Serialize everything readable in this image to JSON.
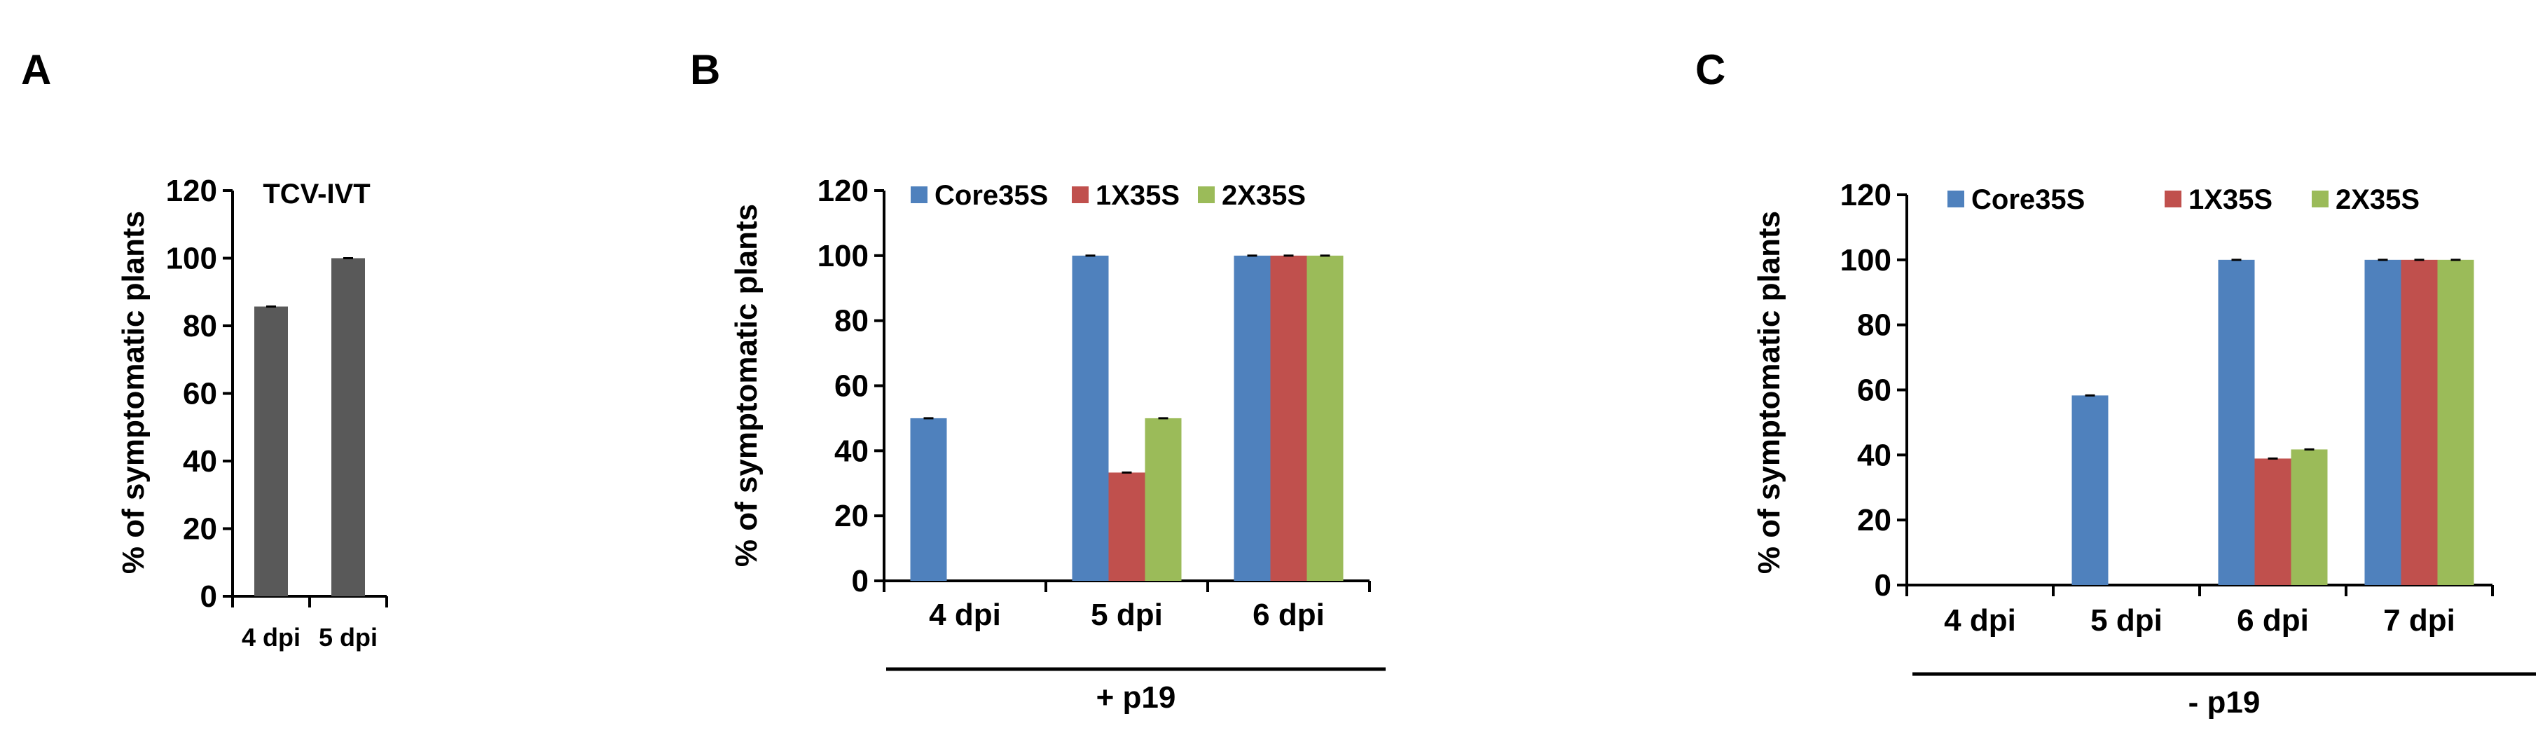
{
  "chart_data": [
    {
      "panel": "A",
      "type": "bar",
      "ylabel": "% of symptomatic plants",
      "ylim": [
        0,
        120
      ],
      "yticks": [
        0,
        20,
        40,
        60,
        80,
        100,
        120
      ],
      "categories": [
        "4 dpi",
        "5 dpi"
      ],
      "annotation": "TCV-IVT",
      "series": [
        {
          "values": [
            85.7,
            100
          ],
          "color": "#595959"
        }
      ]
    },
    {
      "panel": "B",
      "type": "bar",
      "ylabel": "% of symptomatic plants",
      "ylim": [
        0,
        120
      ],
      "yticks": [
        0,
        20,
        40,
        60,
        80,
        100,
        120
      ],
      "categories": [
        "4 dpi",
        "5 dpi",
        "6 dpi"
      ],
      "group_label": "+ p19",
      "legend_position": "top",
      "series": [
        {
          "name": "Core35S",
          "values": [
            50,
            100,
            100
          ],
          "color": "#4f81bd"
        },
        {
          "name": "1X35S",
          "values": [
            0,
            33.3,
            100
          ],
          "color": "#c0504d"
        },
        {
          "name": "2X35S",
          "values": [
            0,
            50,
            100
          ],
          "color": "#9bbb59"
        }
      ]
    },
    {
      "panel": "C",
      "type": "bar",
      "ylabel": "% of symptomatic plants",
      "ylim": [
        0,
        120
      ],
      "yticks": [
        0,
        20,
        40,
        60,
        80,
        100,
        120
      ],
      "categories": [
        "4 dpi",
        "5 dpi",
        "6 dpi",
        "7 dpi"
      ],
      "group_label": "- p19",
      "legend_position": "top",
      "series": [
        {
          "name": "Core35S",
          "values": [
            0,
            58.3,
            100,
            100
          ],
          "color": "#4f81bd"
        },
        {
          "name": "1X35S",
          "values": [
            0,
            0,
            38.9,
            100
          ],
          "color": "#c0504d"
        },
        {
          "name": "2X35S",
          "values": [
            0,
            0,
            41.7,
            100
          ],
          "color": "#9bbb59"
        }
      ]
    }
  ]
}
